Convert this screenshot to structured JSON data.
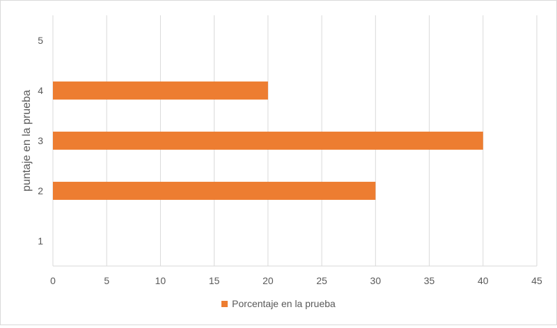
{
  "chart_data": {
    "type": "bar",
    "orientation": "horizontal",
    "categories": [
      "1",
      "2",
      "3",
      "4",
      "5"
    ],
    "series": [
      {
        "name": "Porcentaje en la prueba",
        "values": [
          0,
          30,
          40,
          20,
          0
        ],
        "color": "#ED7D31"
      }
    ],
    "xlim": [
      0,
      45
    ],
    "xticks": [
      "0",
      "5",
      "10",
      "15",
      "20",
      "25",
      "30",
      "35",
      "40",
      "45"
    ],
    "xlabel": "",
    "ylabel": "puntaje en la prueba",
    "grid": true,
    "legend_position": "bottom"
  }
}
